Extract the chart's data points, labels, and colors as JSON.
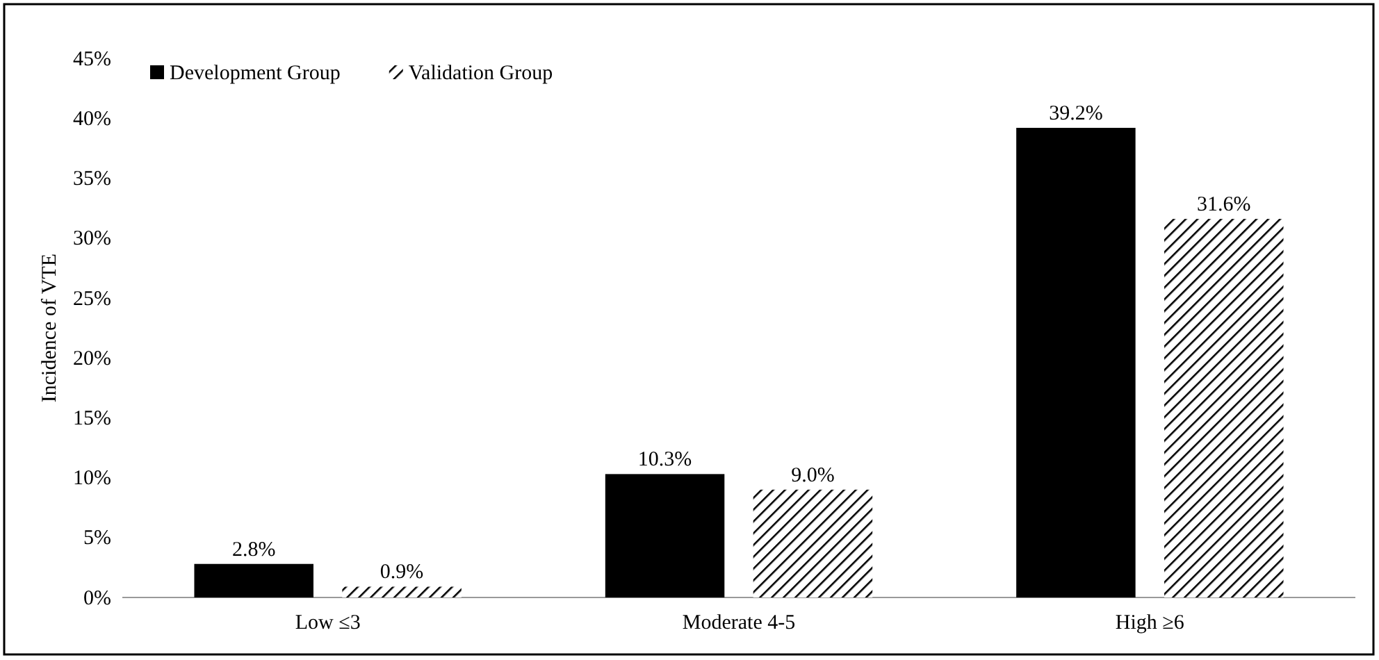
{
  "chart_data": {
    "type": "bar",
    "ylabel": "Incidence of VTE",
    "categories": [
      "Low ≤3",
      "Moderate 4-5",
      "High ≥6"
    ],
    "series": [
      {
        "name": "Development Group",
        "color": "#000000",
        "values": [
          2.8,
          10.3,
          39.2
        ],
        "value_labels": [
          "2.8%",
          "10.3%",
          "39.2%"
        ]
      },
      {
        "name": "Validation Group",
        "color": "#000000",
        "values": [
          0.9,
          9.0,
          31.6
        ],
        "value_labels": [
          "0.9%",
          "9.0%",
          "31.6%"
        ]
      }
    ],
    "ylim": [
      0,
      45
    ],
    "yticks": [
      {
        "value": 0,
        "label": "0%"
      },
      {
        "value": 5,
        "label": "5%"
      },
      {
        "value": 10,
        "label": "10%"
      },
      {
        "value": 15,
        "label": "15%"
      },
      {
        "value": 20,
        "label": "20%"
      },
      {
        "value": 25,
        "label": "25%"
      },
      {
        "value": 30,
        "label": "30%"
      },
      {
        "value": 35,
        "label": "35%"
      },
      {
        "value": 40,
        "label": "40%"
      },
      {
        "value": 45,
        "label": "45%"
      }
    ],
    "legend": "top left"
  }
}
